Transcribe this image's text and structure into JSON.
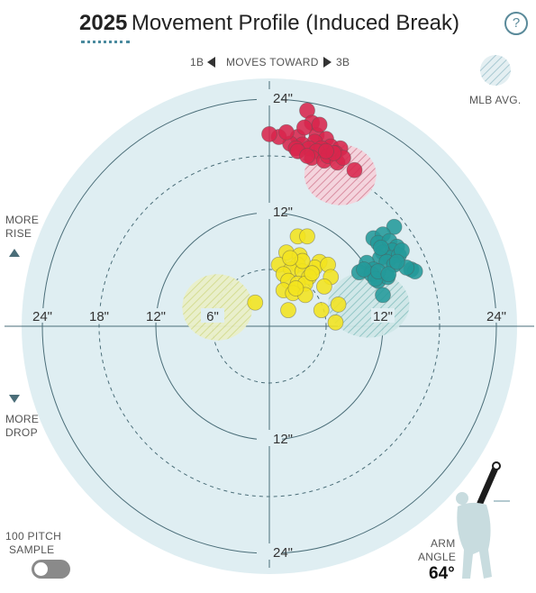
{
  "header": {
    "year": "2025",
    "title": "Movement Profile (Induced Break)",
    "help_label": "?"
  },
  "direction": {
    "left": "1B",
    "middle": "MOVES TOWARD",
    "right": "3B"
  },
  "legend": {
    "mlb_avg_label": "MLB AVG."
  },
  "vertical_labels": {
    "rise_line1": "MORE",
    "rise_line2": "RISE",
    "drop_line1": "MORE",
    "drop_line2": "DROP"
  },
  "sample": {
    "line1": "100 PITCH",
    "line2": "SAMPLE",
    "toggle_on": false
  },
  "arm_angle": {
    "line1": "ARM",
    "line2": "ANGLE",
    "value": "64°"
  },
  "colors": {
    "red": "#d8254c",
    "yellow": "#f2e41e",
    "teal": "#239a9a",
    "plot_bg": "#dfeef2",
    "ring": "#4a6d78",
    "accent": "#4a8a9e"
  },
  "chart_data": {
    "type": "scatter",
    "title": "2025 Movement Profile (Induced Break)",
    "xlabel": "",
    "ylabel": "",
    "xlim": [
      -30,
      30
    ],
    "ylim": [
      -30,
      30
    ],
    "rings_solid": [
      12,
      24
    ],
    "rings_dashed": [
      6,
      18
    ],
    "x_tick_labels": [
      {
        "value": -24,
        "label": "24\""
      },
      {
        "value": -18,
        "label": "18\""
      },
      {
        "value": -12,
        "label": "12\""
      },
      {
        "value": -6,
        "label": "6\""
      },
      {
        "value": 12,
        "label": "12\""
      },
      {
        "value": 24,
        "label": "24\""
      }
    ],
    "y_tick_labels": [
      {
        "value": 24,
        "label": "24\""
      },
      {
        "value": 12,
        "label": "12\""
      },
      {
        "value": -12,
        "label": "12\""
      },
      {
        "value": -24,
        "label": "24\""
      }
    ],
    "series": [
      {
        "color": "#d8254c",
        "mlb_avg": {
          "x": 7.5,
          "y": 16,
          "rx": 3.8,
          "ry": 3.2
        },
        "points": [
          [
            4.0,
            22.8
          ],
          [
            4.5,
            21.5
          ],
          [
            3.0,
            20.0
          ],
          [
            5.0,
            20.2
          ],
          [
            6.0,
            19.8
          ],
          [
            4.8,
            19.5
          ],
          [
            3.5,
            19.2
          ],
          [
            4.2,
            18.8
          ],
          [
            6.5,
            19.0
          ],
          [
            7.5,
            18.8
          ],
          [
            2.2,
            19.3
          ],
          [
            1.0,
            20.0
          ],
          [
            0.0,
            20.3
          ],
          [
            2.8,
            18.8
          ],
          [
            5.5,
            18.8
          ],
          [
            7.0,
            18.3
          ],
          [
            5.0,
            18.5
          ],
          [
            4.5,
            17.8
          ],
          [
            5.8,
            17.5
          ],
          [
            6.2,
            18.0
          ],
          [
            7.2,
            17.3
          ],
          [
            7.8,
            17.8
          ],
          [
            9.0,
            16.5
          ],
          [
            3.7,
            21.0
          ],
          [
            5.3,
            21.3
          ],
          [
            3.0,
            18.5
          ],
          [
            1.8,
            20.5
          ],
          [
            6.8,
            18.3
          ],
          [
            4.0,
            18.0
          ],
          [
            6.0,
            18.5
          ]
        ]
      },
      {
        "color": "#239a9a",
        "mlb_avg": {
          "x": 10.5,
          "y": 2.3,
          "rx": 4.3,
          "ry": 3.5
        },
        "points": [
          [
            13.2,
            10.5
          ],
          [
            11.0,
            9.3
          ],
          [
            12.0,
            9.7
          ],
          [
            11.5,
            8.8
          ],
          [
            12.7,
            9.0
          ],
          [
            13.5,
            8.4
          ],
          [
            13.0,
            8.0
          ],
          [
            12.0,
            7.8
          ],
          [
            12.8,
            7.2
          ],
          [
            13.7,
            7.5
          ],
          [
            14.0,
            8.0
          ],
          [
            11.7,
            7.2
          ],
          [
            12.4,
            6.8
          ],
          [
            10.3,
            6.7
          ],
          [
            13.2,
            6.5
          ],
          [
            11.0,
            6.0
          ],
          [
            15.0,
            6.0
          ],
          [
            15.4,
            5.8
          ],
          [
            9.5,
            5.7
          ],
          [
            10.8,
            5.5
          ],
          [
            11.5,
            4.8
          ],
          [
            12.5,
            5.2
          ],
          [
            12.0,
            3.3
          ],
          [
            11.2,
            5.0
          ],
          [
            10.0,
            6.0
          ],
          [
            11.5,
            5.8
          ],
          [
            14.5,
            6.2
          ],
          [
            12.6,
            5.5
          ],
          [
            13.5,
            6.8
          ],
          [
            11.8,
            8.3
          ]
        ]
      },
      {
        "color": "#f2e41e",
        "mlb_avg": {
          "x": -5.5,
          "y": 2.0,
          "rx": 3.7,
          "ry": 3.5
        },
        "points": [
          [
            3.0,
            9.5
          ],
          [
            4.0,
            9.5
          ],
          [
            1.8,
            7.8
          ],
          [
            3.2,
            7.5
          ],
          [
            5.3,
            6.8
          ],
          [
            1.0,
            6.5
          ],
          [
            3.0,
            6.5
          ],
          [
            4.8,
            6.2
          ],
          [
            6.2,
            6.5
          ],
          [
            2.3,
            6.0
          ],
          [
            3.5,
            5.8
          ],
          [
            1.5,
            5.5
          ],
          [
            4.2,
            5.2
          ],
          [
            6.5,
            5.2
          ],
          [
            2.0,
            4.8
          ],
          [
            3.0,
            4.5
          ],
          [
            3.8,
            4.5
          ],
          [
            5.8,
            4.2
          ],
          [
            1.5,
            3.8
          ],
          [
            2.5,
            3.5
          ],
          [
            3.8,
            3.3
          ],
          [
            -1.5,
            2.5
          ],
          [
            7.3,
            2.3
          ],
          [
            2.0,
            1.7
          ],
          [
            5.5,
            1.7
          ],
          [
            7.0,
            0.4
          ],
          [
            2.8,
            4.0
          ],
          [
            4.5,
            5.6
          ],
          [
            3.5,
            6.9
          ],
          [
            2.2,
            7.2
          ]
        ]
      }
    ]
  }
}
